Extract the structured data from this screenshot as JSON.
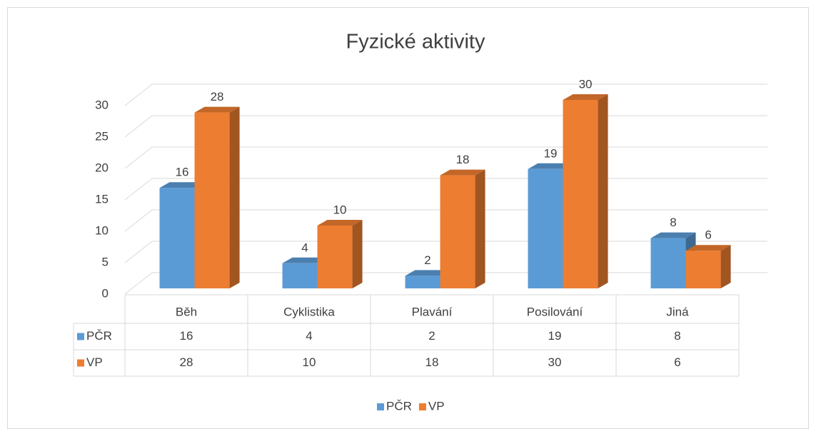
{
  "chart_data": {
    "type": "bar3d",
    "title": "Fyzické aktivity",
    "categories": [
      "Běh",
      "Cyklistika",
      "Plavání",
      "Posilování",
      "Jiná"
    ],
    "series": [
      {
        "name": "PČR",
        "color": "#5b9bd5",
        "values": [
          16,
          4,
          2,
          19,
          8
        ]
      },
      {
        "name": "VP",
        "color": "#ed7d31",
        "values": [
          28,
          10,
          18,
          30,
          6
        ]
      }
    ],
    "ylim": [
      0,
      30
    ],
    "yticks": [
      0,
      5,
      10,
      15,
      20,
      25,
      30
    ],
    "grid": true,
    "data_table": true,
    "legend": "bottom"
  }
}
